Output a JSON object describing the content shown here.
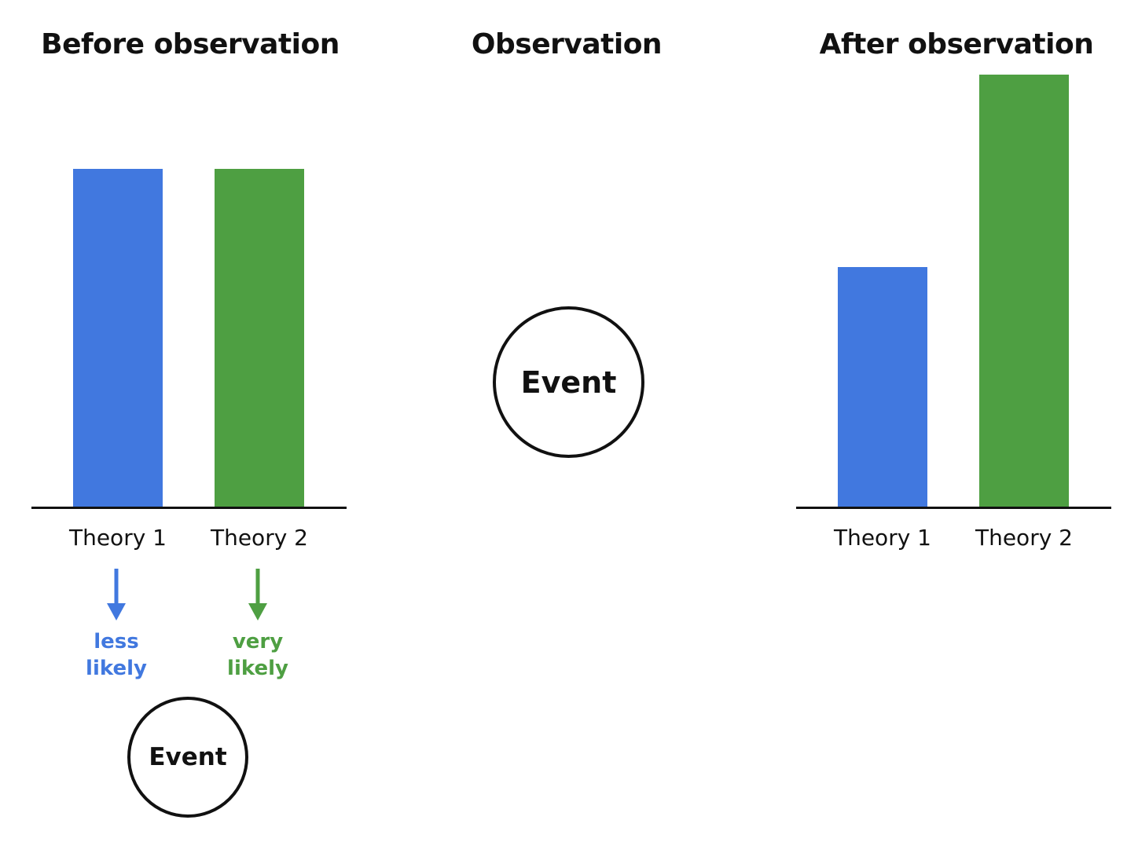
{
  "colors": {
    "theory1": "#4178DF",
    "theory2": "#4E9F42",
    "ink": "#111111"
  },
  "panels": {
    "before": {
      "title": "Before observation",
      "bars": [
        {
          "label": "Theory 1",
          "value": 1.0
        },
        {
          "label": "Theory 2",
          "value": 1.0
        }
      ],
      "annotations": [
        {
          "line1": "less",
          "line2": "likely"
        },
        {
          "line1": "very",
          "line2": "likely"
        }
      ],
      "event_label": "Event"
    },
    "observation": {
      "title": "Observation",
      "event_label": "Event"
    },
    "after": {
      "title": "After observation",
      "bars": [
        {
          "label": "Theory 1",
          "value": 0.71
        },
        {
          "label": "Theory 2",
          "value": 1.28
        }
      ]
    }
  }
}
